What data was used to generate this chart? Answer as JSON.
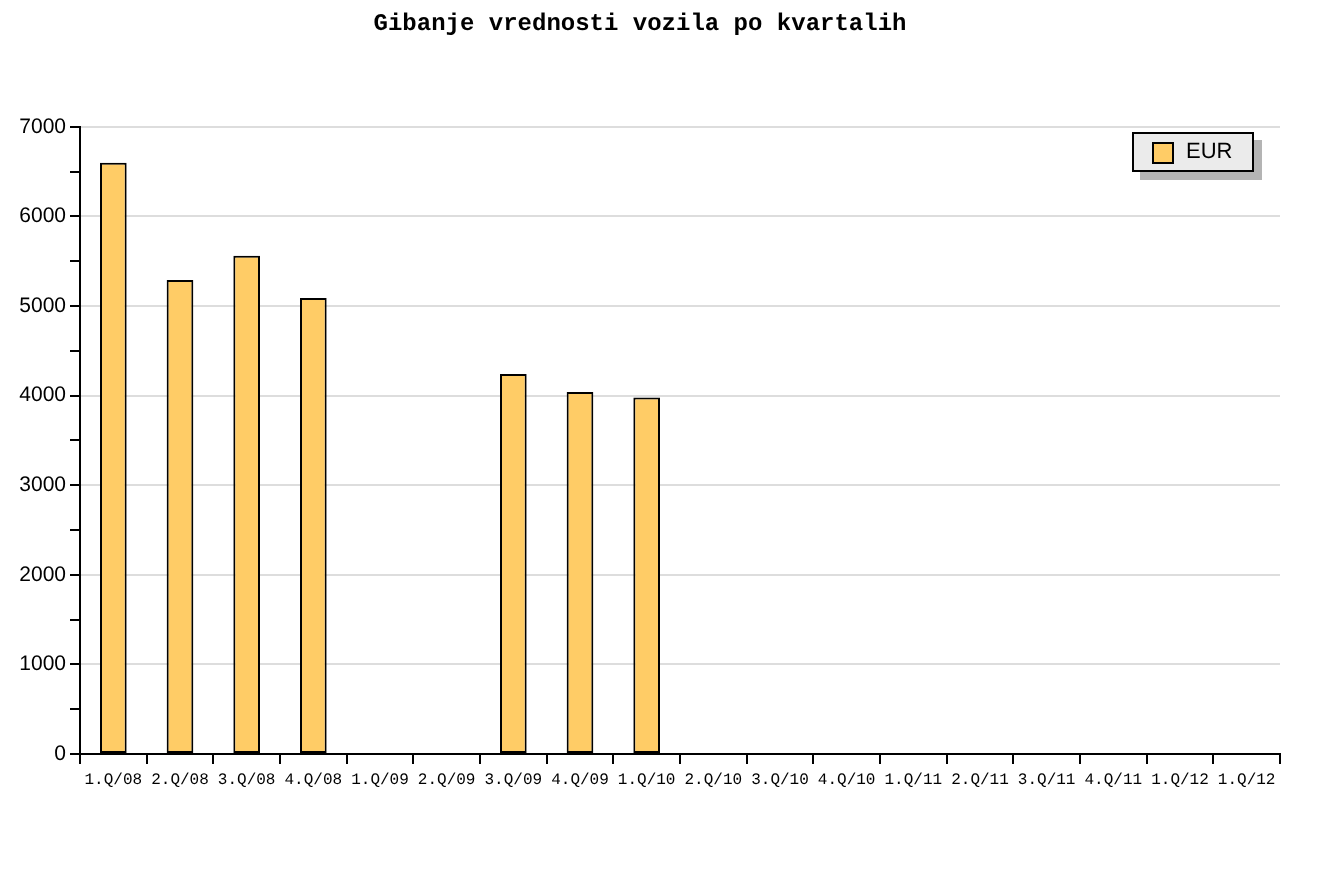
{
  "chart_data": {
    "type": "bar",
    "title": "Gibanje vrednosti vozila po kvartalih",
    "categories": [
      "1.Q/08",
      "2.Q/08",
      "3.Q/08",
      "4.Q/08",
      "1.Q/09",
      "2.Q/09",
      "3.Q/09",
      "4.Q/09",
      "1.Q/10",
      "2.Q/10",
      "3.Q/10",
      "4.Q/10",
      "1.Q/11",
      "2.Q/11",
      "3.Q/11",
      "4.Q/11",
      "1.Q/12",
      "1.Q/12"
    ],
    "series": [
      {
        "name": "EUR",
        "color": "#ffcc66",
        "values": [
          6600,
          5290,
          5560,
          5090,
          null,
          null,
          4240,
          4040,
          3980,
          null,
          null,
          null,
          null,
          null,
          null,
          null,
          null,
          null
        ]
      }
    ],
    "ylim": [
      0,
      7000
    ],
    "yticks": [
      0,
      {
        "value": 500,
        "label": null
      },
      1000,
      {
        "value": 1500,
        "label": null
      },
      2000,
      {
        "value": 2500,
        "label": null
      },
      3000,
      {
        "value": 3500,
        "label": null
      },
      4000,
      {
        "value": 4500,
        "label": null
      },
      5000,
      {
        "value": 5500,
        "label": null
      },
      6000,
      {
        "value": 6500,
        "label": null
      },
      7000
    ],
    "grid": "y",
    "legend": "top right"
  }
}
